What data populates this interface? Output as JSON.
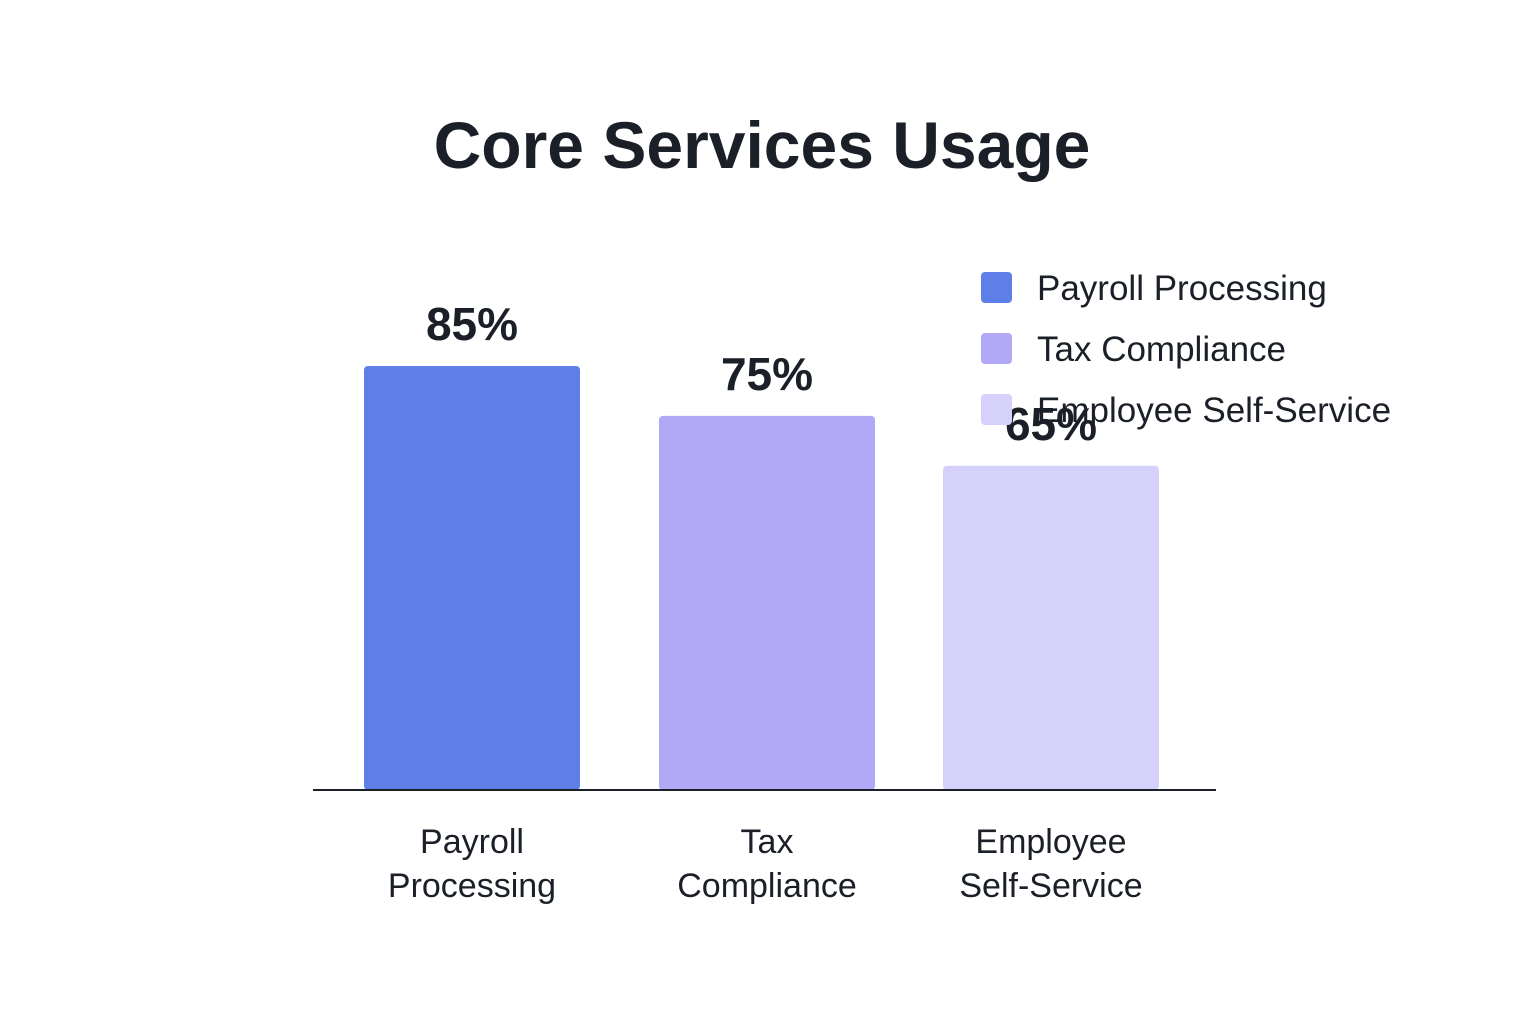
{
  "chart_data": {
    "type": "bar",
    "title": "Core Services Usage",
    "categories": [
      [
        "Payroll",
        "Processing"
      ],
      [
        "Tax",
        "Compliance"
      ],
      [
        "Employee",
        "Self-Service"
      ]
    ],
    "values": [
      85,
      75,
      65
    ],
    "value_labels": [
      "85%",
      "75%",
      "65%"
    ],
    "colors": [
      "#5e7fe8",
      "#b2a9f6",
      "#d6d1fb"
    ],
    "ylim": [
      0,
      100
    ],
    "grid": false,
    "legend": {
      "placement": "top-right",
      "entries": [
        {
          "label": "Payroll Processing",
          "color": "#5e7fe8"
        },
        {
          "label": "Tax Compliance",
          "color": "#b2a9f6"
        },
        {
          "label": "Employee Self-Service",
          "color": "#d6d1fb"
        }
      ]
    }
  }
}
